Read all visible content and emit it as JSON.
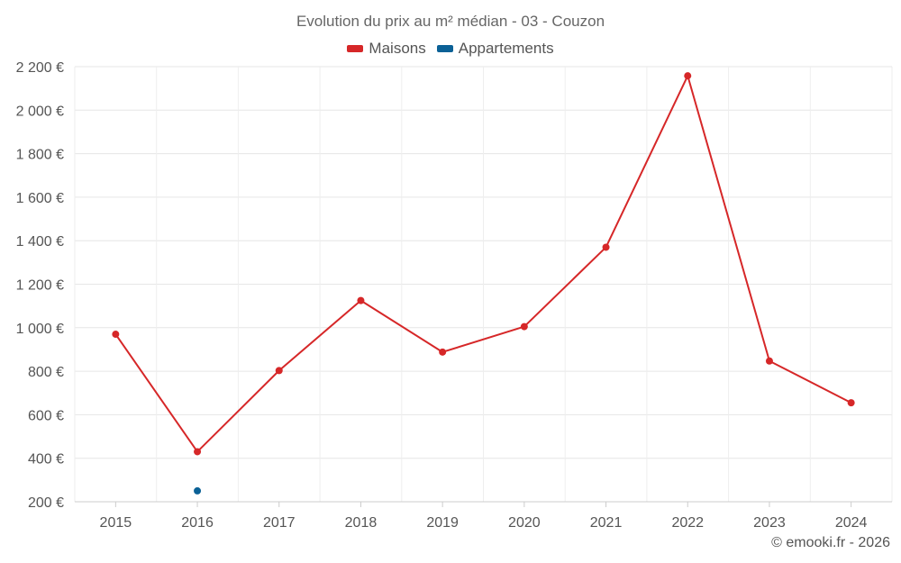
{
  "chart_data": {
    "type": "line",
    "title": "Evolution du prix au m² médian - 03 - Couzon",
    "categories": [
      "2015",
      "2016",
      "2017",
      "2018",
      "2019",
      "2020",
      "2021",
      "2022",
      "2023",
      "2024"
    ],
    "series": [
      {
        "name": "Maisons",
        "color": "#d62728",
        "values": [
          970,
          430,
          803,
          1125,
          888,
          1005,
          1370,
          2158,
          847,
          655
        ]
      },
      {
        "name": "Appartements",
        "color": "#0b6196",
        "values": [
          null,
          250,
          null,
          null,
          null,
          null,
          null,
          null,
          null,
          null
        ]
      }
    ],
    "y_ticks": [
      200,
      400,
      600,
      800,
      1000,
      1200,
      1400,
      1600,
      1800,
      2000,
      2200
    ],
    "y_tick_labels": [
      "200 €",
      "400 €",
      "600 €",
      "800 €",
      "1 000 €",
      "1 200 €",
      "1 400 €",
      "1 600 €",
      "1 800 €",
      "2 000 €",
      "2 200 €"
    ],
    "ylim": [
      200,
      2200
    ],
    "xlabel": "",
    "ylabel": "",
    "grid": true,
    "legend_position": "top"
  },
  "credit": "© emooki.fr - 2026"
}
